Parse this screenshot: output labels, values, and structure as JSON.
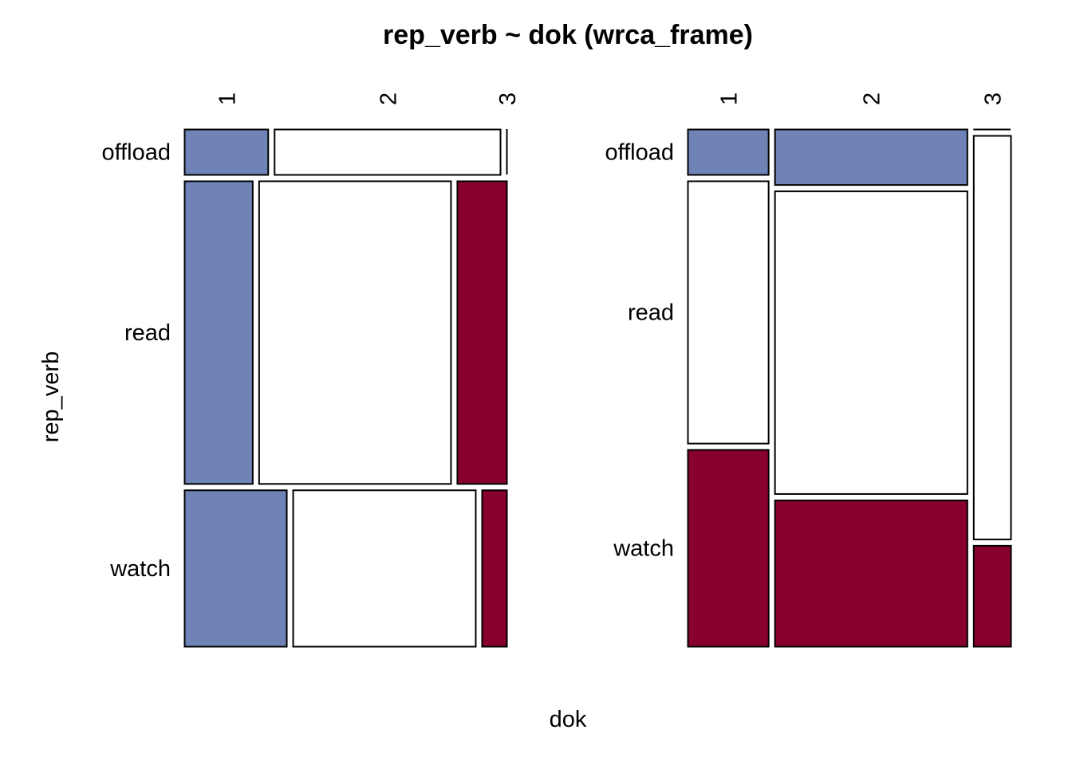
{
  "chart_data": {
    "type": "mosaic",
    "title": "rep_verb ~ dok (wrca_frame)",
    "xlabel": "dok",
    "ylabel": "rep_verb",
    "colors": {
      "blue": "#7083b7",
      "white": "#ffffff",
      "red": "#870030",
      "border": "#000000"
    },
    "panels": [
      {
        "row_split": true,
        "rows": [
          "offload",
          "read",
          "watch"
        ],
        "cols": [
          "1",
          "2",
          "3"
        ],
        "row_props": [
          0.09,
          0.6,
          0.31
        ],
        "cells": [
          {
            "row": "offload",
            "col": "1",
            "share": 0.27,
            "fill": "blue"
          },
          {
            "row": "offload",
            "col": "2",
            "share": 0.73,
            "fill": "white"
          },
          {
            "row": "offload",
            "col": "3",
            "share": 0.0,
            "fill": "white"
          },
          {
            "row": "read",
            "col": "1",
            "share": 0.22,
            "fill": "blue"
          },
          {
            "row": "read",
            "col": "2",
            "share": 0.62,
            "fill": "white"
          },
          {
            "row": "read",
            "col": "3",
            "share": 0.16,
            "fill": "red"
          },
          {
            "row": "watch",
            "col": "1",
            "share": 0.33,
            "fill": "blue"
          },
          {
            "row": "watch",
            "col": "2",
            "share": 0.59,
            "fill": "white"
          },
          {
            "row": "watch",
            "col": "3",
            "share": 0.08,
            "fill": "red"
          }
        ]
      },
      {
        "row_split": false,
        "rows": [
          "offload",
          "read",
          "watch"
        ],
        "cols": [
          "1",
          "2",
          "3"
        ],
        "col_props": [
          0.26,
          0.62,
          0.12
        ],
        "cells": [
          {
            "col": "1",
            "row": "offload",
            "share": 0.09,
            "fill": "blue"
          },
          {
            "col": "1",
            "row": "read",
            "share": 0.52,
            "fill": "white"
          },
          {
            "col": "1",
            "row": "watch",
            "share": 0.39,
            "fill": "red"
          },
          {
            "col": "2",
            "row": "offload",
            "share": 0.11,
            "fill": "blue"
          },
          {
            "col": "2",
            "row": "read",
            "share": 0.6,
            "fill": "white"
          },
          {
            "col": "2",
            "row": "watch",
            "share": 0.29,
            "fill": "red"
          },
          {
            "col": "3",
            "row": "offload",
            "share": 0.0,
            "fill": "white"
          },
          {
            "col": "3",
            "row": "read",
            "share": 0.8,
            "fill": "white"
          },
          {
            "col": "3",
            "row": "watch",
            "share": 0.2,
            "fill": "red"
          }
        ]
      }
    ]
  }
}
